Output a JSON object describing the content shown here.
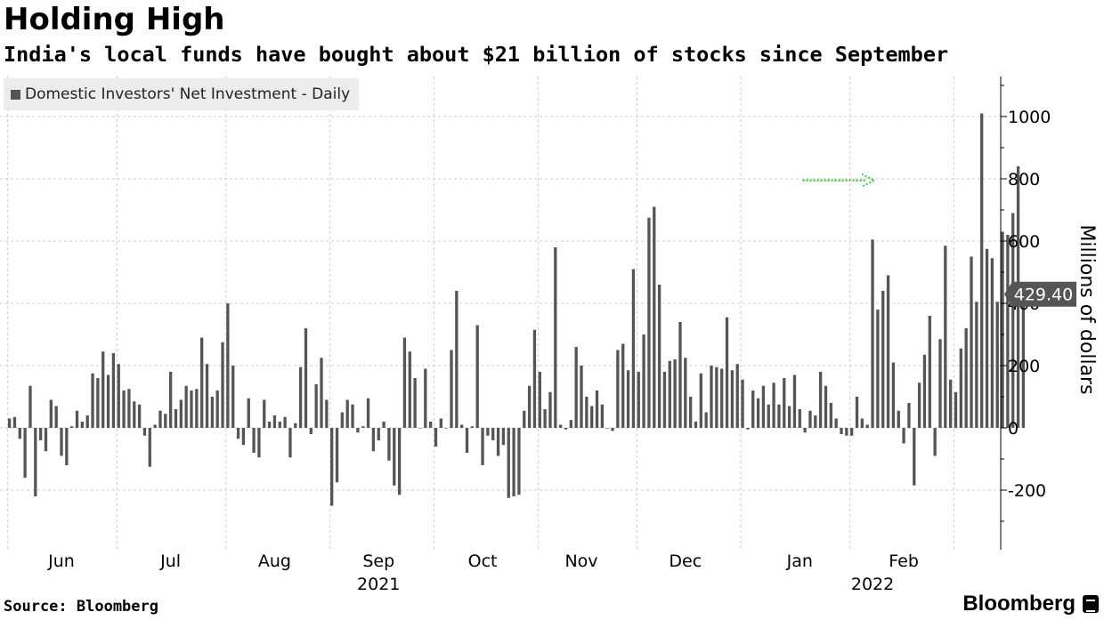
{
  "title": "Holding High",
  "subtitle": "India's local funds have bought about $21 billion of stocks since September",
  "legend_label": "Domestic Investors' Net Investment - Daily",
  "source": "Source: Bloomberg",
  "brand": "Bloomberg",
  "colors": {
    "bar": "#555555",
    "arrow": "#33cc33",
    "grid": "#cccccc",
    "badge": "#555555"
  },
  "chart_data": {
    "type": "bar",
    "title": "Holding High",
    "subtitle": "India's local funds have bought about $21 billion of stocks since September",
    "ylabel": "Millions of dollars",
    "ylim": [
      -380,
      1130
    ],
    "yticks": [
      -200,
      0,
      200,
      400,
      600,
      800,
      1000
    ],
    "ytick_labels": [
      "-200",
      "0",
      "200",
      "400",
      "600",
      "800",
      "1000"
    ],
    "last_value_label": "429.40",
    "grid": true,
    "legend_position": "top-left",
    "x_month_labels": [
      {
        "label": "Jun",
        "index": 10
      },
      {
        "label": "Jul",
        "index": 31
      },
      {
        "label": "Aug",
        "index": 51
      },
      {
        "label": "Sep",
        "index": 71
      },
      {
        "label": "Oct",
        "index": 91
      },
      {
        "label": "Nov",
        "index": 110
      },
      {
        "label": "Dec",
        "index": 130
      },
      {
        "label": "Jan",
        "index": 152
      },
      {
        "label": "Feb",
        "index": 172
      }
    ],
    "x_year_labels": [
      {
        "label": "2021",
        "index": 71
      },
      {
        "label": "2022",
        "index": 166
      }
    ],
    "x_gridline_indices": [
      0,
      21,
      42,
      62,
      82,
      102,
      121,
      141,
      162,
      182
    ],
    "series": [
      {
        "name": "Domestic Investors' Net Investment - Daily",
        "values": [
          30,
          35,
          -35,
          -160,
          135,
          -220,
          -40,
          -75,
          90,
          70,
          -90,
          -120,
          5,
          55,
          20,
          40,
          175,
          160,
          245,
          170,
          240,
          205,
          120,
          125,
          85,
          75,
          -25,
          -125,
          10,
          55,
          45,
          180,
          60,
          90,
          135,
          120,
          125,
          290,
          205,
          100,
          120,
          275,
          400,
          200,
          -35,
          -55,
          95,
          -80,
          -95,
          90,
          20,
          40,
          20,
          35,
          -95,
          15,
          195,
          320,
          -20,
          140,
          225,
          90,
          -250,
          -175,
          50,
          90,
          75,
          -15,
          5,
          95,
          -75,
          -40,
          20,
          -105,
          -185,
          -215,
          290,
          245,
          160,
          0,
          190,
          20,
          -60,
          30,
          0,
          250,
          440,
          10,
          -80,
          5,
          330,
          -120,
          -25,
          -40,
          -90,
          -55,
          -225,
          -220,
          -215,
          55,
          135,
          315,
          180,
          60,
          115,
          580,
          10,
          -5,
          25,
          260,
          200,
          100,
          70,
          120,
          75,
          0,
          -10,
          250,
          270,
          185,
          510,
          180,
          300,
          675,
          710,
          460,
          180,
          215,
          220,
          340,
          225,
          100,
          20,
          175,
          50,
          200,
          195,
          190,
          355,
          185,
          205,
          155,
          -5,
          120,
          95,
          135,
          75,
          145,
          75,
          160,
          70,
          170,
          60,
          -15,
          55,
          40,
          180,
          135,
          80,
          30,
          -20,
          -25,
          -25,
          100,
          30,
          10,
          605,
          380,
          440,
          490,
          210,
          55,
          -50,
          80,
          -185,
          145,
          235,
          360,
          -90,
          285,
          585,
          155,
          115,
          255,
          320,
          550,
          405,
          1010,
          575,
          545,
          405,
          630,
          620,
          690,
          840,
          429.4
        ]
      }
    ],
    "annotations": [
      {
        "type": "arrow",
        "from_index": 156,
        "to_index": 275,
        "y": 795
      }
    ]
  }
}
